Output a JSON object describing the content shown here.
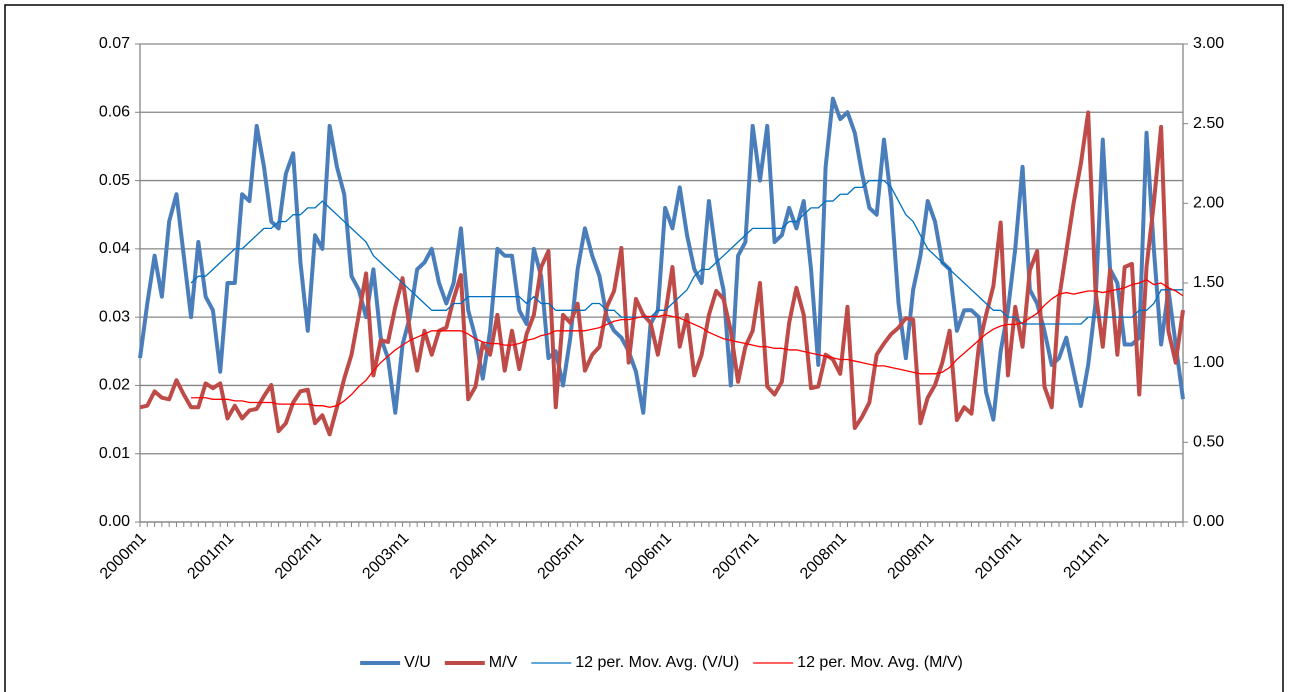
{
  "chart_data": {
    "type": "line",
    "categories": [
      "2000m1",
      null,
      null,
      null,
      null,
      null,
      null,
      null,
      null,
      null,
      null,
      null,
      "2001m1",
      null,
      null,
      null,
      null,
      null,
      null,
      null,
      null,
      null,
      null,
      null,
      "2002m1",
      null,
      null,
      null,
      null,
      null,
      null,
      null,
      null,
      null,
      null,
      null,
      "2003m1",
      null,
      null,
      null,
      null,
      null,
      null,
      null,
      null,
      null,
      null,
      null,
      "2004m1",
      null,
      null,
      null,
      null,
      null,
      null,
      null,
      null,
      null,
      null,
      null,
      "2005m1",
      null,
      null,
      null,
      null,
      null,
      null,
      null,
      null,
      null,
      null,
      null,
      "2006m1",
      null,
      null,
      null,
      null,
      null,
      null,
      null,
      null,
      null,
      null,
      null,
      "2007m1",
      null,
      null,
      null,
      null,
      null,
      null,
      null,
      null,
      null,
      null,
      null,
      "2008m1",
      null,
      null,
      null,
      null,
      null,
      null,
      null,
      null,
      null,
      null,
      null,
      "2009m1",
      null,
      null,
      null,
      null,
      null,
      null,
      null,
      null,
      null,
      null,
      null,
      "2010m1",
      null,
      null,
      null,
      null,
      null,
      null,
      null,
      null,
      null,
      null,
      null,
      "2011m1",
      null,
      null,
      null,
      null,
      null,
      null,
      null,
      null,
      null,
      null,
      null
    ],
    "series": [
      {
        "name": "V/U",
        "color": "#4a7ebb",
        "width": 4,
        "values": [
          0.024,
          0.032,
          0.039,
          0.033,
          0.044,
          0.048,
          0.039,
          0.03,
          0.041,
          0.033,
          0.031,
          0.022,
          0.035,
          0.035,
          0.048,
          0.047,
          0.058,
          0.052,
          0.044,
          0.043,
          0.051,
          0.054,
          0.038,
          0.028,
          0.042,
          0.04,
          0.058,
          0.052,
          0.048,
          0.036,
          0.034,
          0.03,
          0.037,
          0.027,
          0.024,
          0.016,
          0.026,
          0.03,
          0.037,
          0.038,
          0.04,
          0.035,
          0.032,
          0.035,
          0.043,
          0.031,
          0.027,
          0.021,
          0.028,
          0.04,
          0.039,
          0.039,
          0.031,
          0.029,
          0.04,
          0.036,
          0.024,
          0.025,
          0.02,
          0.027,
          0.037,
          0.043,
          0.039,
          0.036,
          0.03,
          0.028,
          0.027,
          0.025,
          0.022,
          0.016,
          0.029,
          0.031,
          0.046,
          0.043,
          0.049,
          0.042,
          0.037,
          0.035,
          0.047,
          0.039,
          0.034,
          0.02,
          0.039,
          0.041,
          0.058,
          0.05,
          0.058,
          0.041,
          0.042,
          0.046,
          0.043,
          0.047,
          0.037,
          0.023,
          0.052,
          0.062,
          0.059,
          0.06,
          0.057,
          0.051,
          0.046,
          0.045,
          0.056,
          0.047,
          0.032,
          0.024,
          0.034,
          0.039,
          0.047,
          0.044,
          0.038,
          0.037,
          0.028,
          0.031,
          0.031,
          0.03,
          0.019,
          0.015,
          0.025,
          0.031,
          0.04,
          0.052,
          0.034,
          0.032,
          0.028,
          0.023,
          0.024,
          0.027,
          0.022,
          0.017,
          0.023,
          0.032,
          0.056,
          0.037,
          0.035,
          0.026,
          0.026,
          0.027,
          0.057,
          0.04,
          0.026,
          0.034,
          0.026,
          0.018
        ]
      },
      {
        "name": "M/V",
        "color": "#be4b48",
        "width": 4,
        "axis": "y2",
        "values": [
          0.72,
          0.73,
          0.82,
          0.78,
          0.77,
          0.89,
          0.8,
          0.72,
          0.72,
          0.87,
          0.84,
          0.87,
          0.65,
          0.73,
          0.65,
          0.7,
          0.71,
          0.79,
          0.86,
          0.57,
          0.62,
          0.75,
          0.82,
          0.83,
          0.62,
          0.67,
          0.55,
          0.72,
          0.9,
          1.05,
          1.3,
          1.56,
          0.92,
          1.14,
          1.13,
          1.35,
          1.53,
          1.2,
          0.95,
          1.2,
          1.05,
          1.2,
          1.22,
          1.4,
          1.55,
          0.77,
          0.85,
          1.12,
          1.05,
          1.3,
          0.95,
          1.2,
          0.96,
          1.18,
          1.3,
          1.6,
          1.7,
          0.72,
          1.3,
          1.25,
          1.37,
          0.95,
          1.05,
          1.1,
          1.35,
          1.45,
          1.72,
          1.0,
          1.4,
          1.3,
          1.25,
          1.05,
          1.3,
          1.6,
          1.1,
          1.3,
          0.92,
          1.05,
          1.3,
          1.45,
          1.4,
          1.2,
          0.88,
          1.1,
          1.2,
          1.5,
          0.85,
          0.8,
          0.88,
          1.25,
          1.47,
          1.3,
          0.84,
          0.85,
          1.05,
          1.02,
          0.93,
          1.35,
          0.59,
          0.66,
          0.75,
          1.05,
          1.12,
          1.18,
          1.22,
          1.28,
          1.27,
          0.62,
          0.78,
          0.86,
          1.0,
          1.2,
          0.64,
          0.72,
          0.68,
          1.1,
          1.3,
          1.48,
          1.88,
          0.92,
          1.35,
          1.1,
          1.58,
          1.7,
          0.85,
          0.72,
          1.4,
          1.7,
          2.0,
          2.25,
          2.57,
          1.45,
          1.1,
          1.58,
          1.05,
          1.6,
          1.62,
          0.8,
          1.6,
          2.0,
          2.48,
          1.2,
          1.0,
          1.33
        ]
      },
      {
        "name": "12 per. Mov. Avg. (V/U)",
        "color": "#0070c0",
        "width": 1.3,
        "values": [
          null,
          null,
          null,
          null,
          null,
          null,
          null,
          0.035,
          0.036,
          0.036,
          0.037,
          0.038,
          0.039,
          0.04,
          0.04,
          0.041,
          0.042,
          0.043,
          0.043,
          0.044,
          0.044,
          0.045,
          0.045,
          0.046,
          0.046,
          0.047,
          0.046,
          0.045,
          0.044,
          0.043,
          0.042,
          0.041,
          0.039,
          0.038,
          0.037,
          0.036,
          0.035,
          0.034,
          0.033,
          0.032,
          0.031,
          0.031,
          0.031,
          0.032,
          0.032,
          0.033,
          0.033,
          0.033,
          0.033,
          0.033,
          0.033,
          0.033,
          0.033,
          0.032,
          0.033,
          0.032,
          0.032,
          0.031,
          0.031,
          0.031,
          0.031,
          0.031,
          0.032,
          0.032,
          0.031,
          0.031,
          0.03,
          0.03,
          0.03,
          0.03,
          0.03,
          0.031,
          0.031,
          0.032,
          0.033,
          0.034,
          0.036,
          0.037,
          0.037,
          0.038,
          0.039,
          0.04,
          0.041,
          0.042,
          0.043,
          0.043,
          0.043,
          0.043,
          0.043,
          0.044,
          0.044,
          0.045,
          0.046,
          0.046,
          0.047,
          0.047,
          0.048,
          0.048,
          0.049,
          0.049,
          0.05,
          0.05,
          0.05,
          0.049,
          0.047,
          0.045,
          0.044,
          0.042,
          0.04,
          0.039,
          0.038,
          0.037,
          0.036,
          0.035,
          0.034,
          0.033,
          0.032,
          0.031,
          0.031,
          0.03,
          0.03,
          0.029,
          0.029,
          0.029,
          0.029,
          0.029,
          0.029,
          0.029,
          0.029,
          0.029,
          0.03,
          0.03,
          0.03,
          0.03,
          0.03,
          0.03,
          0.03,
          0.031,
          0.031,
          0.032,
          0.034,
          0.034,
          0.034,
          0.034
        ]
      },
      {
        "name": "12 per. Mov. Avg. (M/V)",
        "color": "#ff0000",
        "width": 1.3,
        "axis": "y2",
        "values": [
          null,
          null,
          null,
          null,
          null,
          null,
          null,
          0.78,
          0.78,
          0.78,
          0.77,
          0.77,
          0.77,
          0.76,
          0.76,
          0.75,
          0.75,
          0.75,
          0.75,
          0.74,
          0.74,
          0.74,
          0.74,
          0.74,
          0.73,
          0.73,
          0.72,
          0.73,
          0.76,
          0.8,
          0.85,
          0.89,
          0.95,
          1.0,
          1.04,
          1.08,
          1.11,
          1.14,
          1.16,
          1.18,
          1.2,
          1.2,
          1.2,
          1.2,
          1.2,
          1.18,
          1.15,
          1.13,
          1.12,
          1.12,
          1.11,
          1.11,
          1.12,
          1.14,
          1.15,
          1.17,
          1.18,
          1.2,
          1.2,
          1.2,
          1.2,
          1.2,
          1.21,
          1.22,
          1.24,
          1.26,
          1.27,
          1.27,
          1.28,
          1.29,
          1.29,
          1.29,
          1.3,
          1.29,
          1.28,
          1.26,
          1.24,
          1.22,
          1.19,
          1.17,
          1.15,
          1.14,
          1.13,
          1.12,
          1.11,
          1.1,
          1.1,
          1.09,
          1.09,
          1.08,
          1.08,
          1.07,
          1.06,
          1.05,
          1.04,
          1.03,
          1.02,
          1.02,
          1.01,
          1.0,
          0.99,
          0.98,
          0.98,
          0.97,
          0.96,
          0.95,
          0.94,
          0.93,
          0.93,
          0.93,
          0.94,
          0.97,
          1.02,
          1.06,
          1.1,
          1.14,
          1.18,
          1.21,
          1.23,
          1.24,
          1.24,
          1.25,
          1.28,
          1.31,
          1.36,
          1.4,
          1.43,
          1.44,
          1.43,
          1.44,
          1.45,
          1.45,
          1.44,
          1.45,
          1.46,
          1.47,
          1.49,
          1.5,
          1.52,
          1.49,
          1.5,
          1.47,
          1.45,
          1.42
        ]
      }
    ],
    "ylim": [
      0,
      0.07
    ],
    "yticks": [
      {
        "value": 0,
        "label": "0.00"
      },
      0.01,
      0.02,
      0.03,
      0.04,
      0.05,
      0.06,
      0.07
    ],
    "y2lim": [
      0,
      3
    ],
    "y2ticks": [
      {
        "value": 0,
        "label": "0.00"
      },
      {
        "value": 0.5,
        "label": "0.50"
      },
      {
        "value": 1,
        "label": "1.00"
      },
      {
        "value": 1.5,
        "label": "1.50"
      },
      {
        "value": 2,
        "label": "2.00"
      },
      {
        "value": 2.5,
        "label": "2.50"
      },
      {
        "value": 3,
        "label": "3.00"
      }
    ],
    "grid": true,
    "legend": "bottom"
  }
}
